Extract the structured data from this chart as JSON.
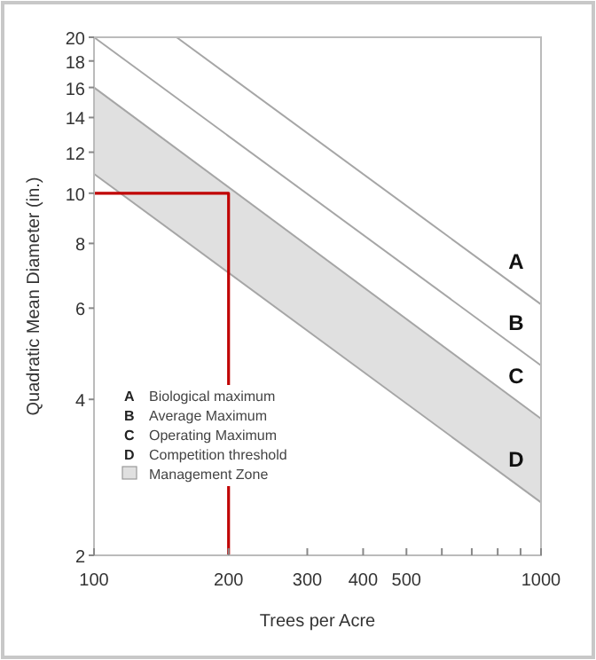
{
  "chart_data": {
    "type": "line",
    "xlabel": "Trees per Acre",
    "ylabel": "Quadratic Mean Diameter (in.)",
    "log": "xy",
    "xlim": [
      100,
      1000
    ],
    "ylim": [
      2,
      20
    ],
    "xticks": [
      100,
      200,
      300,
      400,
      500,
      {
        "value": 600,
        "label": null
      },
      {
        "value": 700,
        "label": null
      },
      {
        "value": 800,
        "label": null
      },
      {
        "value": 900,
        "label": null
      },
      1000
    ],
    "yticks": [
      2,
      4,
      6,
      8,
      10,
      12,
      14,
      16,
      18,
      20
    ],
    "series": [
      {
        "name": "A",
        "color": "#a6a6a6",
        "x": [
          153,
          1000
        ],
        "values": [
          20,
          6.1
        ]
      },
      {
        "name": "B",
        "color": "#a6a6a6",
        "x": [
          100,
          1000
        ],
        "values": [
          20,
          4.65
        ]
      },
      {
        "name": "C",
        "color": "#a6a6a6",
        "x": [
          100,
          1000
        ],
        "values": [
          16,
          3.67
        ]
      },
      {
        "name": "D",
        "color": "#a6a6a6",
        "x": [
          100,
          1000
        ],
        "values": [
          10.9,
          2.53
        ],
        "lower": [
          10.9,
          2.53
        ],
        "upper": [
          16,
          3.67
        ]
      },
      {
        "color": "#c00000",
        "x": [
          100,
          200,
          200
        ],
        "values": [
          10,
          10,
          2
        ]
      }
    ],
    "annotations": [
      "Biological maximum",
      "Average Maximum",
      "Operating Maximum",
      "Competition threshold",
      "Management Zone"
    ],
    "grid": false,
    "marker": "none",
    "line_style": "solid"
  }
}
